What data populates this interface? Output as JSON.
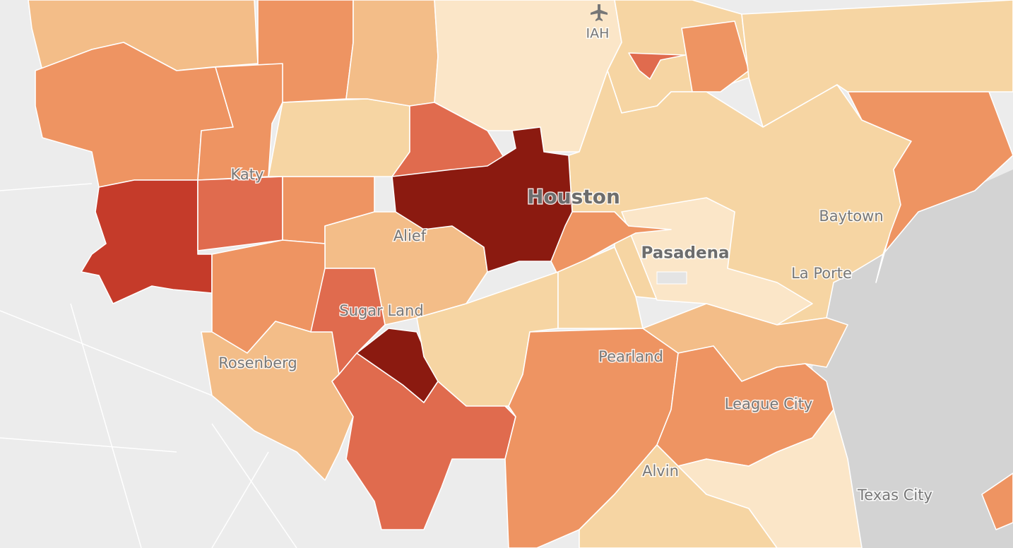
{
  "map": {
    "places": [
      {
        "name": "IAH"
      },
      {
        "name": "Katy"
      },
      {
        "name": "Houston"
      },
      {
        "name": "Baytown"
      },
      {
        "name": "Alief"
      },
      {
        "name": "Pasadena"
      },
      {
        "name": "La Porte"
      },
      {
        "name": "Sugar Land"
      },
      {
        "name": "Rosenberg"
      },
      {
        "name": "Pearland"
      },
      {
        "name": "League City"
      },
      {
        "name": "Alvin"
      },
      {
        "name": "Texas City"
      }
    ]
  }
}
